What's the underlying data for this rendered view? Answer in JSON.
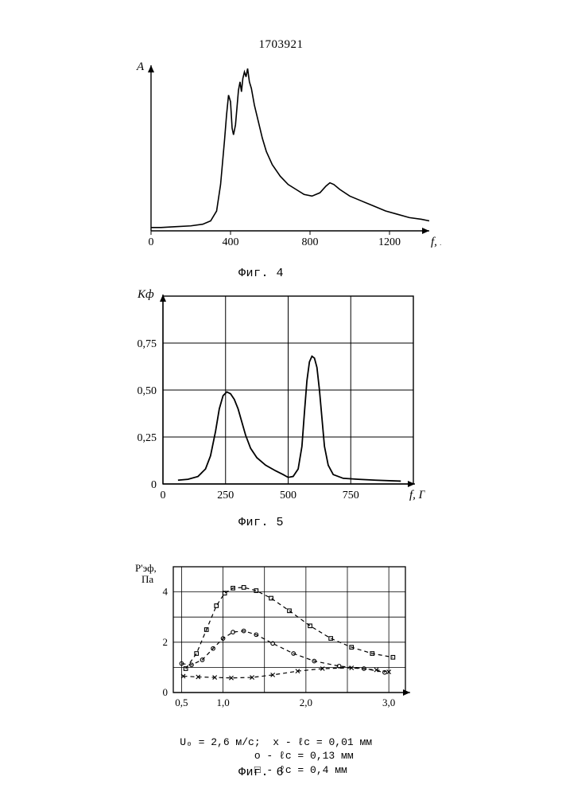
{
  "document_number": "1703921",
  "global": {
    "stroke_color": "#000000",
    "background_color": "#ffffff",
    "font_family_label": "Courier New, monospace",
    "font_family_number": "Times New Roman, serif"
  },
  "fig4": {
    "caption": "Фиг. 4",
    "type": "line",
    "y_label": "A",
    "x_label": "f, Гц",
    "xlim": [
      0,
      1400
    ],
    "ylim": [
      0,
      100
    ],
    "xticks": [
      0,
      400,
      800,
      1200
    ],
    "axis_fontsize": 14,
    "label_fontsize": 15,
    "stroke_width": 1.6,
    "series": [
      {
        "color": "#000000",
        "points": [
          [
            0,
            2
          ],
          [
            50,
            2
          ],
          [
            120,
            2.5
          ],
          [
            200,
            3
          ],
          [
            260,
            4
          ],
          [
            300,
            6
          ],
          [
            330,
            12
          ],
          [
            350,
            28
          ],
          [
            370,
            55
          ],
          [
            380,
            70
          ],
          [
            390,
            82
          ],
          [
            400,
            78
          ],
          [
            408,
            62
          ],
          [
            415,
            58
          ],
          [
            425,
            64
          ],
          [
            440,
            85
          ],
          [
            448,
            90
          ],
          [
            455,
            84
          ],
          [
            462,
            92
          ],
          [
            470,
            96
          ],
          [
            478,
            93
          ],
          [
            486,
            98
          ],
          [
            495,
            90
          ],
          [
            505,
            86
          ],
          [
            520,
            76
          ],
          [
            540,
            66
          ],
          [
            560,
            56
          ],
          [
            580,
            48
          ],
          [
            610,
            40
          ],
          [
            650,
            33
          ],
          [
            690,
            28
          ],
          [
            730,
            25
          ],
          [
            770,
            22
          ],
          [
            810,
            21
          ],
          [
            850,
            23
          ],
          [
            880,
            27
          ],
          [
            900,
            29
          ],
          [
            920,
            28
          ],
          [
            950,
            25
          ],
          [
            1000,
            21
          ],
          [
            1060,
            18
          ],
          [
            1120,
            15
          ],
          [
            1180,
            12
          ],
          [
            1240,
            10
          ],
          [
            1300,
            8
          ],
          [
            1360,
            7
          ],
          [
            1400,
            6
          ]
        ]
      }
    ]
  },
  "fig5": {
    "caption": "Фиг. 5",
    "type": "line",
    "y_label": "Kф",
    "x_label": "f, Гц",
    "xlim": [
      0,
      1000
    ],
    "ylim": [
      0,
      1.0
    ],
    "xticks": [
      0,
      250,
      500,
      750
    ],
    "yticks": [
      0,
      0.25,
      0.5,
      0.75
    ],
    "grid": true,
    "grid_color": "#000000",
    "axis_fontsize": 14,
    "label_fontsize": 15,
    "stroke_width": 1.8,
    "series": [
      {
        "color": "#000000",
        "points": [
          [
            60,
            0.02
          ],
          [
            100,
            0.025
          ],
          [
            140,
            0.04
          ],
          [
            170,
            0.08
          ],
          [
            190,
            0.15
          ],
          [
            210,
            0.28
          ],
          [
            225,
            0.4
          ],
          [
            240,
            0.47
          ],
          [
            255,
            0.49
          ],
          [
            270,
            0.48
          ],
          [
            285,
            0.45
          ],
          [
            300,
            0.4
          ],
          [
            315,
            0.33
          ],
          [
            330,
            0.26
          ],
          [
            350,
            0.19
          ],
          [
            375,
            0.14
          ],
          [
            410,
            0.1
          ],
          [
            450,
            0.07
          ],
          [
            480,
            0.05
          ],
          [
            500,
            0.035
          ],
          [
            520,
            0.04
          ],
          [
            540,
            0.08
          ],
          [
            555,
            0.2
          ],
          [
            565,
            0.38
          ],
          [
            575,
            0.55
          ],
          [
            585,
            0.65
          ],
          [
            595,
            0.68
          ],
          [
            605,
            0.67
          ],
          [
            615,
            0.62
          ],
          [
            625,
            0.5
          ],
          [
            635,
            0.35
          ],
          [
            645,
            0.2
          ],
          [
            660,
            0.1
          ],
          [
            680,
            0.05
          ],
          [
            720,
            0.03
          ],
          [
            780,
            0.025
          ],
          [
            850,
            0.02
          ],
          [
            950,
            0.015
          ]
        ]
      }
    ]
  },
  "fig6": {
    "caption": "Фиг. 6",
    "type": "scatter-line-dashed",
    "y_label": "P'эф, Па",
    "x_label": "",
    "xlim": [
      0.4,
      3.2
    ],
    "ylim": [
      0,
      5
    ],
    "xticks": [
      0.5,
      1.0,
      2.0,
      3.0
    ],
    "xtick_labels": [
      "0,5",
      "1,0",
      "2,0",
      "3,0"
    ],
    "yticks": [
      0,
      2,
      4
    ],
    "grid": true,
    "grid_color": "#000000",
    "axis_fontsize": 13,
    "label_fontsize": 13,
    "stroke_width": 1.2,
    "dash_pattern": "5,4",
    "marker_size": 4.2,
    "series": [
      {
        "marker": "x",
        "color": "#000000",
        "points": [
          [
            0.52,
            0.65
          ],
          [
            0.7,
            0.62
          ],
          [
            0.9,
            0.6
          ],
          [
            1.1,
            0.58
          ],
          [
            1.35,
            0.6
          ],
          [
            1.6,
            0.7
          ],
          [
            1.9,
            0.85
          ],
          [
            2.2,
            0.95
          ],
          [
            2.55,
            0.98
          ],
          [
            2.85,
            0.9
          ],
          [
            3.0,
            0.82
          ]
        ]
      },
      {
        "marker": "circle",
        "color": "#000000",
        "points": [
          [
            0.5,
            1.15
          ],
          [
            0.62,
            1.1
          ],
          [
            0.75,
            1.3
          ],
          [
            0.88,
            1.75
          ],
          [
            1.0,
            2.15
          ],
          [
            1.12,
            2.4
          ],
          [
            1.25,
            2.45
          ],
          [
            1.4,
            2.3
          ],
          [
            1.6,
            1.95
          ],
          [
            1.85,
            1.55
          ],
          [
            2.1,
            1.25
          ],
          [
            2.4,
            1.05
          ],
          [
            2.7,
            0.95
          ],
          [
            2.95,
            0.8
          ]
        ]
      },
      {
        "marker": "square",
        "color": "#000000",
        "points": [
          [
            0.55,
            0.95
          ],
          [
            0.68,
            1.55
          ],
          [
            0.8,
            2.5
          ],
          [
            0.92,
            3.45
          ],
          [
            1.02,
            3.95
          ],
          [
            1.12,
            4.15
          ],
          [
            1.25,
            4.18
          ],
          [
            1.4,
            4.05
          ],
          [
            1.58,
            3.75
          ],
          [
            1.8,
            3.25
          ],
          [
            2.05,
            2.65
          ],
          [
            2.3,
            2.15
          ],
          [
            2.55,
            1.8
          ],
          [
            2.8,
            1.55
          ],
          [
            3.05,
            1.4
          ]
        ]
      }
    ],
    "legend": {
      "u_line": "U₀ = 2,6 м/с;",
      "items": [
        {
          "marker": "x",
          "text": "ℓc = 0,01 мм"
        },
        {
          "marker": "circle",
          "text": "ℓc = 0,13 мм"
        },
        {
          "marker": "square",
          "text": "ℓc = 0,4 мм"
        }
      ]
    }
  }
}
